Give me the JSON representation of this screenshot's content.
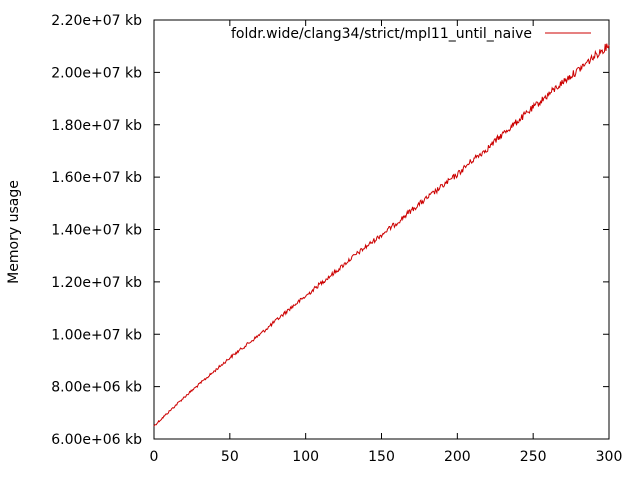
{
  "chart_data": {
    "type": "line",
    "title": "",
    "xlabel": "",
    "ylabel": "Memory usage",
    "xlim": [
      0,
      300
    ],
    "ylim": [
      6000000,
      22000000
    ],
    "x_ticks": [
      0,
      50,
      100,
      150,
      200,
      250,
      300
    ],
    "x_tick_labels": [
      "0",
      "50",
      "100",
      "150",
      "200",
      "250",
      "300"
    ],
    "y_ticks": [
      6000000,
      8000000,
      10000000,
      12000000,
      14000000,
      16000000,
      18000000,
      20000000,
      22000000
    ],
    "y_tick_labels": [
      "6.00e+06 kb",
      "8.00e+06 kb",
      "1.00e+07 kb",
      "1.20e+07 kb",
      "1.40e+07 kb",
      "1.60e+07 kb",
      "1.80e+07 kb",
      "2.00e+07 kb",
      "2.20e+07 kb"
    ],
    "grid": false,
    "legend_position": "top-right",
    "series": [
      {
        "name": "foldr.wide/clang34/strict/mpl11_until_naive",
        "color": "#cc0000",
        "x": [
          0,
          10,
          20,
          30,
          40,
          50,
          60,
          70,
          80,
          90,
          100,
          110,
          120,
          130,
          140,
          150,
          160,
          170,
          180,
          190,
          200,
          210,
          220,
          230,
          240,
          250,
          260,
          270,
          280,
          290,
          300
        ],
        "y": [
          6500000,
          7050000,
          7600000,
          8100000,
          8600000,
          9100000,
          9550000,
          10000000,
          10500000,
          11000000,
          11450000,
          11950000,
          12400000,
          12900000,
          13350000,
          13800000,
          14250000,
          14750000,
          15200000,
          15650000,
          16100000,
          16650000,
          17100000,
          17650000,
          18150000,
          18650000,
          19150000,
          19650000,
          20100000,
          20600000,
          21050000
        ]
      }
    ]
  }
}
